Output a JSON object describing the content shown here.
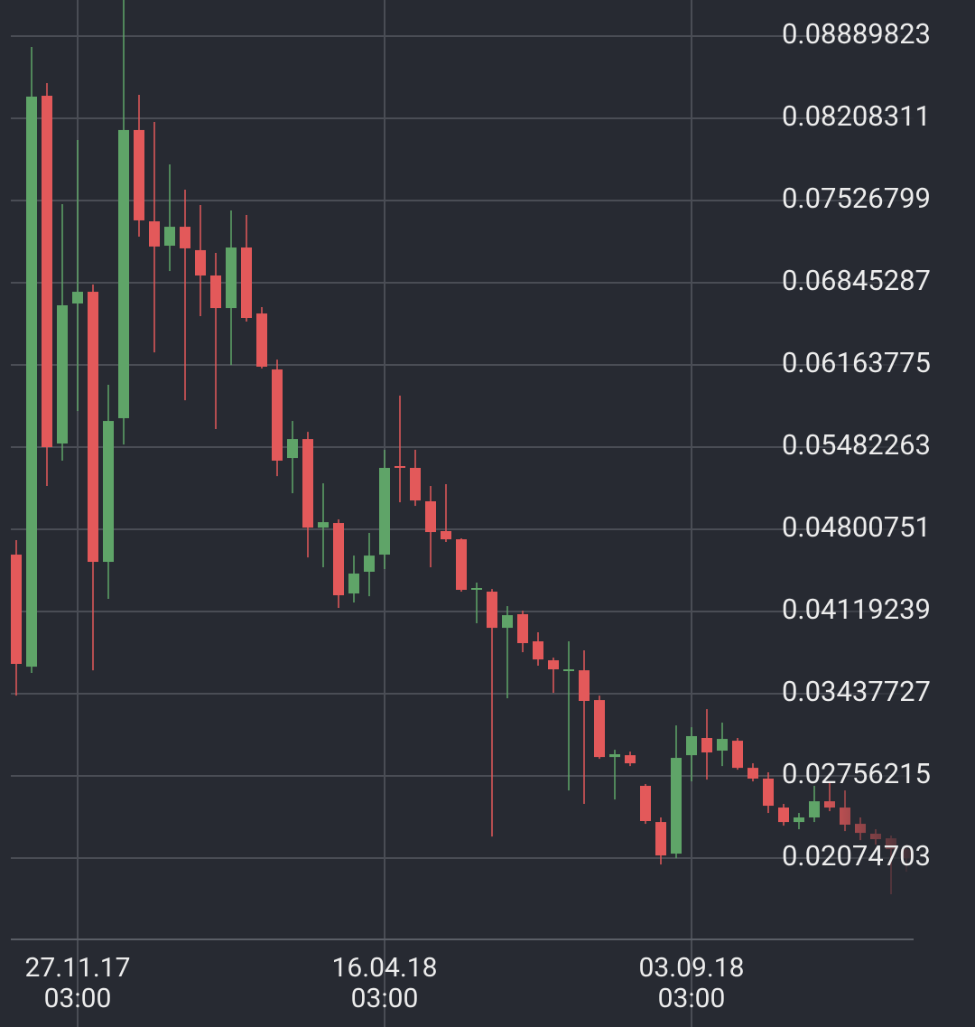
{
  "chart_data": {
    "type": "candlestick",
    "categories": [
      null,
      null,
      null,
      null,
      "27.11.17\n03:00",
      null,
      null,
      null,
      null,
      null,
      null,
      null,
      null,
      null,
      null,
      null,
      null,
      null,
      null,
      null,
      null,
      null,
      null,
      null,
      "16.04.18\n03:00",
      null,
      null,
      null,
      null,
      null,
      null,
      null,
      null,
      null,
      null,
      null,
      null,
      null,
      null,
      null,
      null,
      null,
      null,
      null,
      "03.09.18\n03:00",
      null,
      null,
      null,
      null,
      null,
      null,
      null,
      null,
      null,
      null,
      null,
      null,
      null,
      null
    ],
    "open": [
      0.04591,
      0.03662,
      0.08395,
      0.05512,
      0.06673,
      0.0677,
      0.04531,
      0.05722,
      0.08111,
      0.07354,
      0.07152,
      0.07309,
      0.07115,
      0.06905,
      0.06635,
      0.07137,
      0.0659,
      0.06126,
      0.05392,
      0.05549,
      0.04815,
      0.04853,
      0.04269,
      0.04449,
      0.04591,
      0.05325,
      0.0531,
      0.05033,
      0.04786,
      0.04718,
      0.04306,
      0.04284,
      0.03984,
      0.04097,
      0.03872,
      0.03715,
      0.03632,
      0.03632,
      0.03385,
      0.02913,
      0.02928,
      0.02674,
      0.02374,
      0.02112,
      0.02928,
      0.03071,
      0.02966,
      0.03048,
      0.02823,
      0.02734,
      0.02494,
      0.02374,
      0.02412,
      0.02546,
      0.02494,
      0.02359,
      0.02277,
      0.02239,
      0.02149
    ],
    "high": [
      0.04711,
      0.088,
      0.085,
      0.07497,
      0.08028,
      0.0683,
      0.05999,
      0.09189,
      0.08403,
      0.08178,
      0.07826,
      0.07616,
      0.07489,
      0.07092,
      0.07444,
      0.07407,
      0.06643,
      0.06208,
      0.05699,
      0.05609,
      0.05182,
      0.04883,
      0.04583,
      0.04771,
      0.0546,
      0.05909,
      0.0546,
      0.0516,
      0.05175,
      0.04726,
      0.04359,
      0.04306,
      0.04164,
      0.04126,
      0.03947,
      0.03737,
      0.03872,
      0.03797,
      0.03422,
      0.02973,
      0.02958,
      0.02689,
      0.02412,
      0.03175,
      0.0316,
      0.0331,
      0.03198,
      0.03071,
      0.02861,
      0.02786,
      0.02524,
      0.02449,
      0.02674,
      0.02711,
      0.02636,
      0.02412,
      0.02314,
      0.02262,
      0.02187
    ],
    "low": [
      0.03422,
      0.0361,
      0.0516,
      0.0537,
      0.05782,
      0.03632,
      0.04224,
      0.05504,
      0.07227,
      0.06268,
      0.06942,
      0.05871,
      0.06568,
      0.05632,
      0.06163,
      0.06523,
      0.06134,
      0.05242,
      0.051,
      0.04568,
      0.04486,
      0.04149,
      0.04194,
      0.04246,
      0.04471,
      0.05025,
      0.04995,
      0.04486,
      0.04696,
      0.04284,
      0.04022,
      0.02254,
      0.034,
      0.03782,
      0.0367,
      0.03445,
      0.02636,
      0.02524,
      0.02898,
      0.02561,
      0.02838,
      0.02359,
      0.02022,
      0.02074,
      0.02711,
      0.02726,
      0.02838,
      0.02808,
      0.02711,
      0.02449,
      0.02344,
      0.02314,
      0.02374,
      0.02464,
      0.02299,
      0.02224,
      0.02187,
      0.01775,
      0.01962
    ],
    "close": [
      0.03685,
      0.08388,
      0.05482,
      0.06658,
      0.0677,
      0.04531,
      0.05699,
      0.08111,
      0.07362,
      0.07145,
      0.07309,
      0.0713,
      0.06905,
      0.06635,
      0.07137,
      0.06553,
      0.06149,
      0.0537,
      0.05549,
      0.04815,
      0.0486,
      0.04254,
      0.04434,
      0.04583,
      0.0531,
      0.0531,
      0.0504,
      0.04778,
      0.04718,
      0.04299,
      0.04314,
      0.03984,
      0.04089,
      0.03857,
      0.03722,
      0.0364,
      0.0364,
      0.03378,
      0.02913,
      0.02936,
      0.02861,
      0.02382,
      0.02097,
      0.02906,
      0.03086,
      0.02951,
      0.03063,
      0.02823,
      0.02734,
      0.02509,
      0.02374,
      0.02412,
      0.02546,
      0.02494,
      0.02352,
      0.02284,
      0.02232,
      0.02149,
      0.02074
    ],
    "up_color": "#5fa468",
    "down_color": "#e3595a",
    "ylim": [
      0.01401,
      0.09189
    ],
    "yticks": [
      0.08889823,
      0.08208311,
      0.07526799,
      0.06845287,
      0.06163775,
      0.05482263,
      0.04800751,
      0.04119239,
      0.03437727,
      0.02756215,
      0.02074703
    ],
    "grid": true
  }
}
